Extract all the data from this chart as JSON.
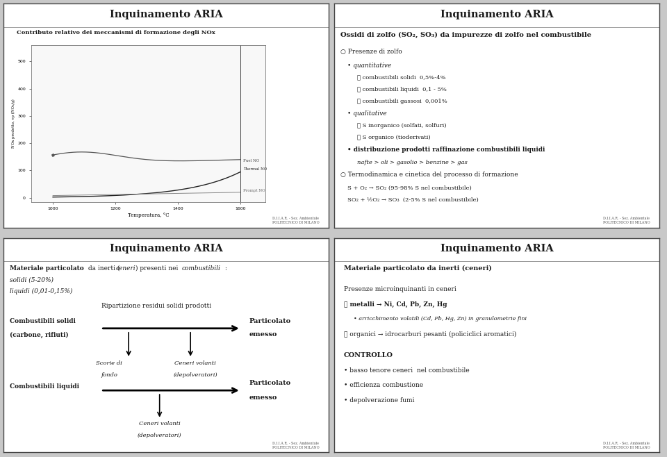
{
  "bg_color": "#c8c8c8",
  "panel_bg": "#ffffff",
  "border_color": "#333333",
  "title": "Inquinamento ARIA",
  "title_fontsize": 11,
  "text_color": "#1a1a1a",
  "footer_text": "D.I.I.A.R. - Sez. Ambientale\nPOLITECNICO DI MILANO",
  "panel1": {
    "subtitle": "Contributo relativo dei meccanismi di formazione degli NOx",
    "xlabel": "Temperatura, °C",
    "ylabel": "NOx prodotto, vp (NO₂/g)",
    "x_ticks": [
      1000,
      1200,
      1400,
      1600
    ],
    "y_ticks": [
      0,
      100,
      200,
      300,
      400,
      500
    ],
    "thermal_label": "Thermal NO",
    "fuel_label": "Fuel NO",
    "prompt_label": "Prompt NO"
  },
  "panel2": {
    "lines": [
      {
        "indent": 0,
        "text": "Ossidi di zolfo (SO₂, SO₃) da impurezze di zolfo nel combustibile",
        "style": "bold_title"
      },
      {
        "indent": 0,
        "text": "○ Presenze di zolfo",
        "style": "normal"
      },
      {
        "indent": 1,
        "text": "• quantitative",
        "style": "italic"
      },
      {
        "indent": 2,
        "text": "➤ combustibili solidi  0,5%-4%",
        "style": "small"
      },
      {
        "indent": 2,
        "text": "➤ combustibili liquidi  0,1 - 5%",
        "style": "small"
      },
      {
        "indent": 2,
        "text": "➤ combustibili gassosi  0,001%",
        "style": "small"
      },
      {
        "indent": 1,
        "text": "• qualitative",
        "style": "italic"
      },
      {
        "indent": 2,
        "text": "➤ S inorganico (solfati, solfuri)",
        "style": "small"
      },
      {
        "indent": 2,
        "text": "➤ S organico (tioderivati)",
        "style": "small"
      },
      {
        "indent": 1,
        "text": "• distribuzione prodotti raffinazione combustibili liquidi",
        "style": "bold_normal"
      },
      {
        "indent": 2,
        "text": "nafte > oli > gasolio > benzine > gas",
        "style": "italic_small"
      },
      {
        "indent": 0,
        "text": "○ Termodinamica e cinetica del processo di formazione",
        "style": "normal"
      },
      {
        "indent": 1,
        "text": "S + O₂ → SO₂ (95-98% S nel combustibile)",
        "style": "small"
      },
      {
        "indent": 1,
        "text": "SO₂ + ½O₂ → SO₃  (2-5% S nel combustibile)",
        "style": "small"
      }
    ]
  },
  "panel3": {
    "header1a": "Materiale particolato",
    "header1b": " da inerti (",
    "header1c": "ceneri",
    "header1d": ") presenti nei ",
    "header1e": "combustibili",
    "header1f": " :",
    "header2": "solidi (5-20%)",
    "header3": "liquidi (0,01-0,15%)",
    "center_title": "Ripartizione residui solidi prodotti",
    "solid_label1": "Combustibili solidi",
    "solid_label2": "(carbone, rifiuti)",
    "liquid_label": "Combustibili liquidi",
    "part_label": "Particolato\nemesso",
    "scorie_label": "Scorie di\nfondo",
    "ceneri1_label": "Ceneri volanti\n(depolveratori)",
    "ceneri2_label": "Ceneri volanti\n(depolveratori)"
  },
  "panel4": {
    "lines": [
      {
        "text": "Materiale particolato da inerti (ceneri)",
        "style": "bold"
      },
      {
        "text": "",
        "style": "spacer"
      },
      {
        "text": "Presenze microinquinanti in ceneri",
        "style": "normal"
      },
      {
        "text": "➤ metalli → Ni, Cd, Pb, Zn, Hg",
        "style": "bold_arrow"
      },
      {
        "text": "  • arricchimento volatili (Cd, Pb, Hg, Zn) in granulometrie fini",
        "style": "small_italic"
      },
      {
        "text": "➤ organici → idrocarburi pesanti (policiclici aromatici)",
        "style": "normal"
      },
      {
        "text": "",
        "style": "spacer"
      },
      {
        "text": "CONTROLLO",
        "style": "bold"
      },
      {
        "text": "• basso tenore ceneri  nel combustibile",
        "style": "normal"
      },
      {
        "text": "• efficienza combustione",
        "style": "normal"
      },
      {
        "text": "• depolverazione fumi",
        "style": "normal"
      }
    ]
  }
}
